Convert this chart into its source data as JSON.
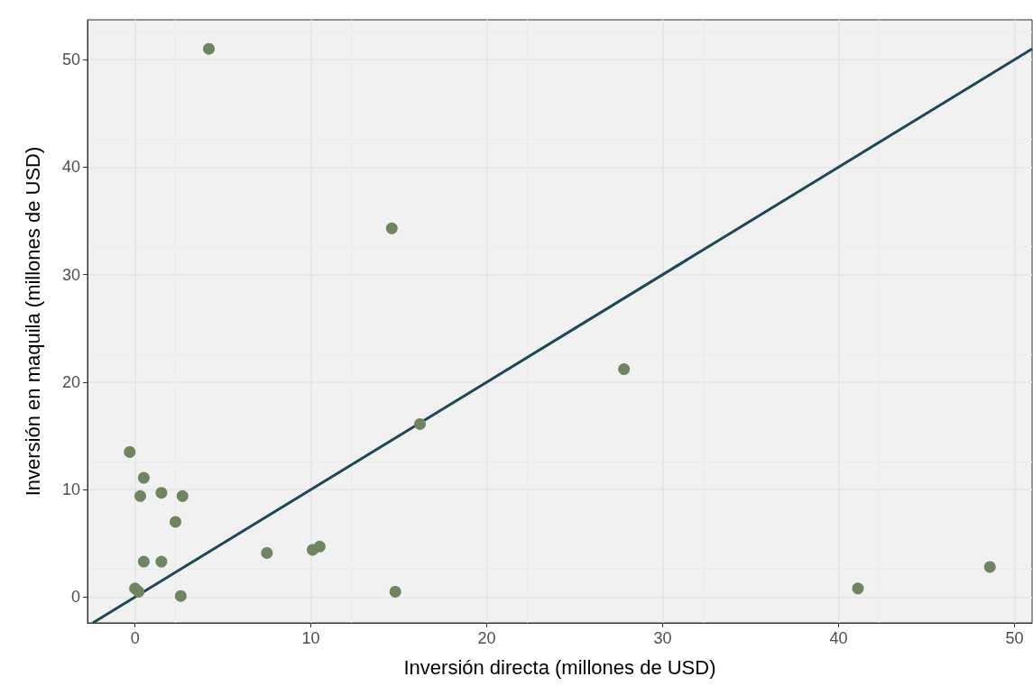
{
  "chart_data": {
    "type": "scatter",
    "xlabel": "Inversión directa (millones de USD)",
    "ylabel": "Inversión en maquila (millones de USD)",
    "xlim": [
      -2.7,
      51
    ],
    "xticks": [
      0,
      10,
      20,
      30,
      40,
      50
    ],
    "ylim": [
      -2.4,
      53.7
    ],
    "yticks": [
      0,
      10,
      20,
      30,
      40,
      50
    ],
    "grid": true,
    "series": [
      {
        "color": "#6e8560",
        "marker": "circle",
        "x": [
          -0.3,
          0.5,
          0.3,
          1.5,
          2.7,
          2.3,
          0.5,
          1.5,
          0.0,
          0.2,
          2.6,
          7.5,
          10.1,
          10.5,
          14.8,
          14.6,
          16.2,
          27.8,
          41.1,
          48.6,
          4.2
        ],
        "values": [
          13.5,
          11.1,
          9.4,
          9.7,
          9.4,
          7.0,
          3.3,
          3.3,
          0.8,
          0.5,
          0.1,
          4.1,
          4.4,
          4.7,
          0.5,
          34.3,
          16.1,
          21.2,
          0.8,
          2.8,
          51.0
        ]
      },
      {
        "type": "line",
        "color": "#1b4a55",
        "marker": "none",
        "x": [
          -2.4,
          51
        ],
        "values": [
          -2.4,
          51
        ]
      }
    ]
  }
}
